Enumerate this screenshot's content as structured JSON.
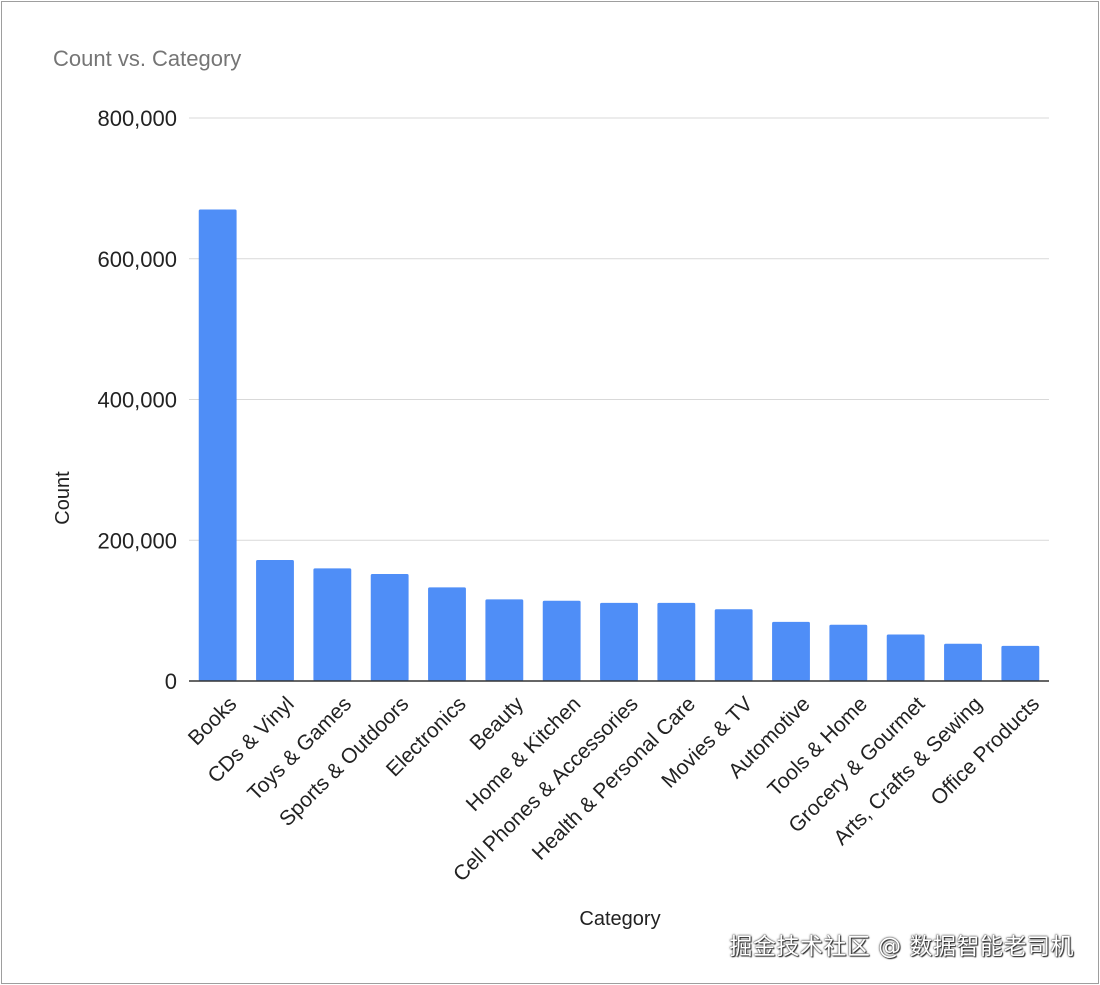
{
  "chart_data": {
    "type": "bar",
    "title": "Count vs. Category",
    "xlabel": "Category",
    "ylabel": "Count",
    "ylim": [
      0,
      800000
    ],
    "yticks": [
      0,
      200000,
      400000,
      600000,
      800000
    ],
    "ytick_labels": [
      "0",
      "200,000",
      "400,000",
      "600,000",
      "800,000"
    ],
    "grid": true,
    "legend": "none",
    "categories": [
      "Books",
      "CDs & Vinyl",
      "Toys & Games",
      "Sports & Outdoors",
      "Electronics",
      "Beauty",
      "Home & Kitchen",
      "Cell Phones & Accessories",
      "Health & Personal Care",
      "Movies & TV",
      "Automotive",
      "Tools & Home",
      "Grocery & Gourmet",
      "Arts, Crafts & Sewing",
      "Office Products"
    ],
    "series": [
      {
        "values": [
          670000,
          172000,
          160000,
          152000,
          133000,
          116000,
          114000,
          111000,
          111000,
          102000,
          84000,
          80000,
          66000,
          53000,
          50000
        ]
      }
    ],
    "colors": {
      "bar": "#4f8ef7",
      "grid": "#d9d9d9",
      "axis": "#333333",
      "title": "#757575",
      "text": "#222222"
    }
  },
  "watermark": "掘金技术社区 @ 数据智能老司机"
}
